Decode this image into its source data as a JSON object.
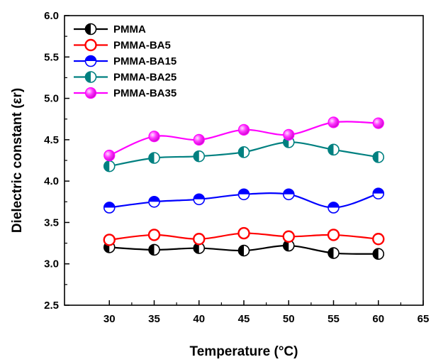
{
  "chart_data": {
    "type": "line",
    "xlabel": "Temperature (°C)",
    "ylabel": "Dielectric constant (εr)",
    "xlim": [
      25,
      65
    ],
    "ylim": [
      2.5,
      6.0
    ],
    "xticks": [
      30,
      35,
      40,
      45,
      50,
      55,
      60,
      65
    ],
    "yticks": [
      2.5,
      3.0,
      3.5,
      4.0,
      4.5,
      5.0,
      5.5,
      6.0
    ],
    "x": [
      30,
      35,
      40,
      45,
      50,
      55,
      60
    ],
    "grid": false,
    "legend_position": "top-left",
    "series": [
      {
        "name": "PMMA",
        "color": "#000000",
        "marker": "circle-half-left",
        "values": [
          3.2,
          3.17,
          3.19,
          3.16,
          3.22,
          3.13,
          3.12
        ]
      },
      {
        "name": "PMMA-BA5",
        "color": "#ff0000",
        "marker": "circle-open",
        "values": [
          3.29,
          3.35,
          3.3,
          3.37,
          3.33,
          3.35,
          3.3
        ]
      },
      {
        "name": "PMMA-BA15",
        "color": "#0000ff",
        "marker": "circle-half-top",
        "values": [
          3.68,
          3.75,
          3.78,
          3.84,
          3.84,
          3.68,
          3.85
        ]
      },
      {
        "name": "PMMA-BA25",
        "color": "#008080",
        "marker": "circle-half-left",
        "values": [
          4.18,
          4.28,
          4.3,
          4.35,
          4.47,
          4.38,
          4.29
        ]
      },
      {
        "name": "PMMA-BA35",
        "color": "#ff00ff",
        "marker": "circle-filled-highlight",
        "values": [
          4.31,
          4.54,
          4.5,
          4.62,
          4.56,
          4.71,
          4.7
        ]
      }
    ]
  }
}
